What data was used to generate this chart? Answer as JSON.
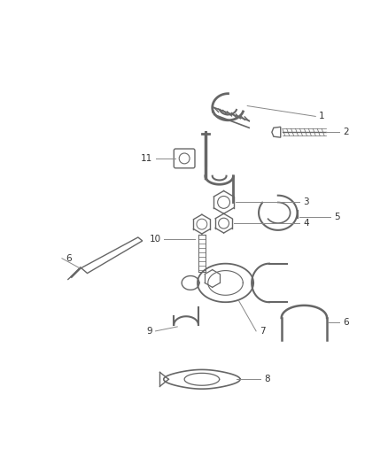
{
  "background_color": "#ffffff",
  "line_color": "#666666",
  "text_color": "#333333",
  "fig_width": 4.38,
  "fig_height": 5.33,
  "dpi": 100
}
